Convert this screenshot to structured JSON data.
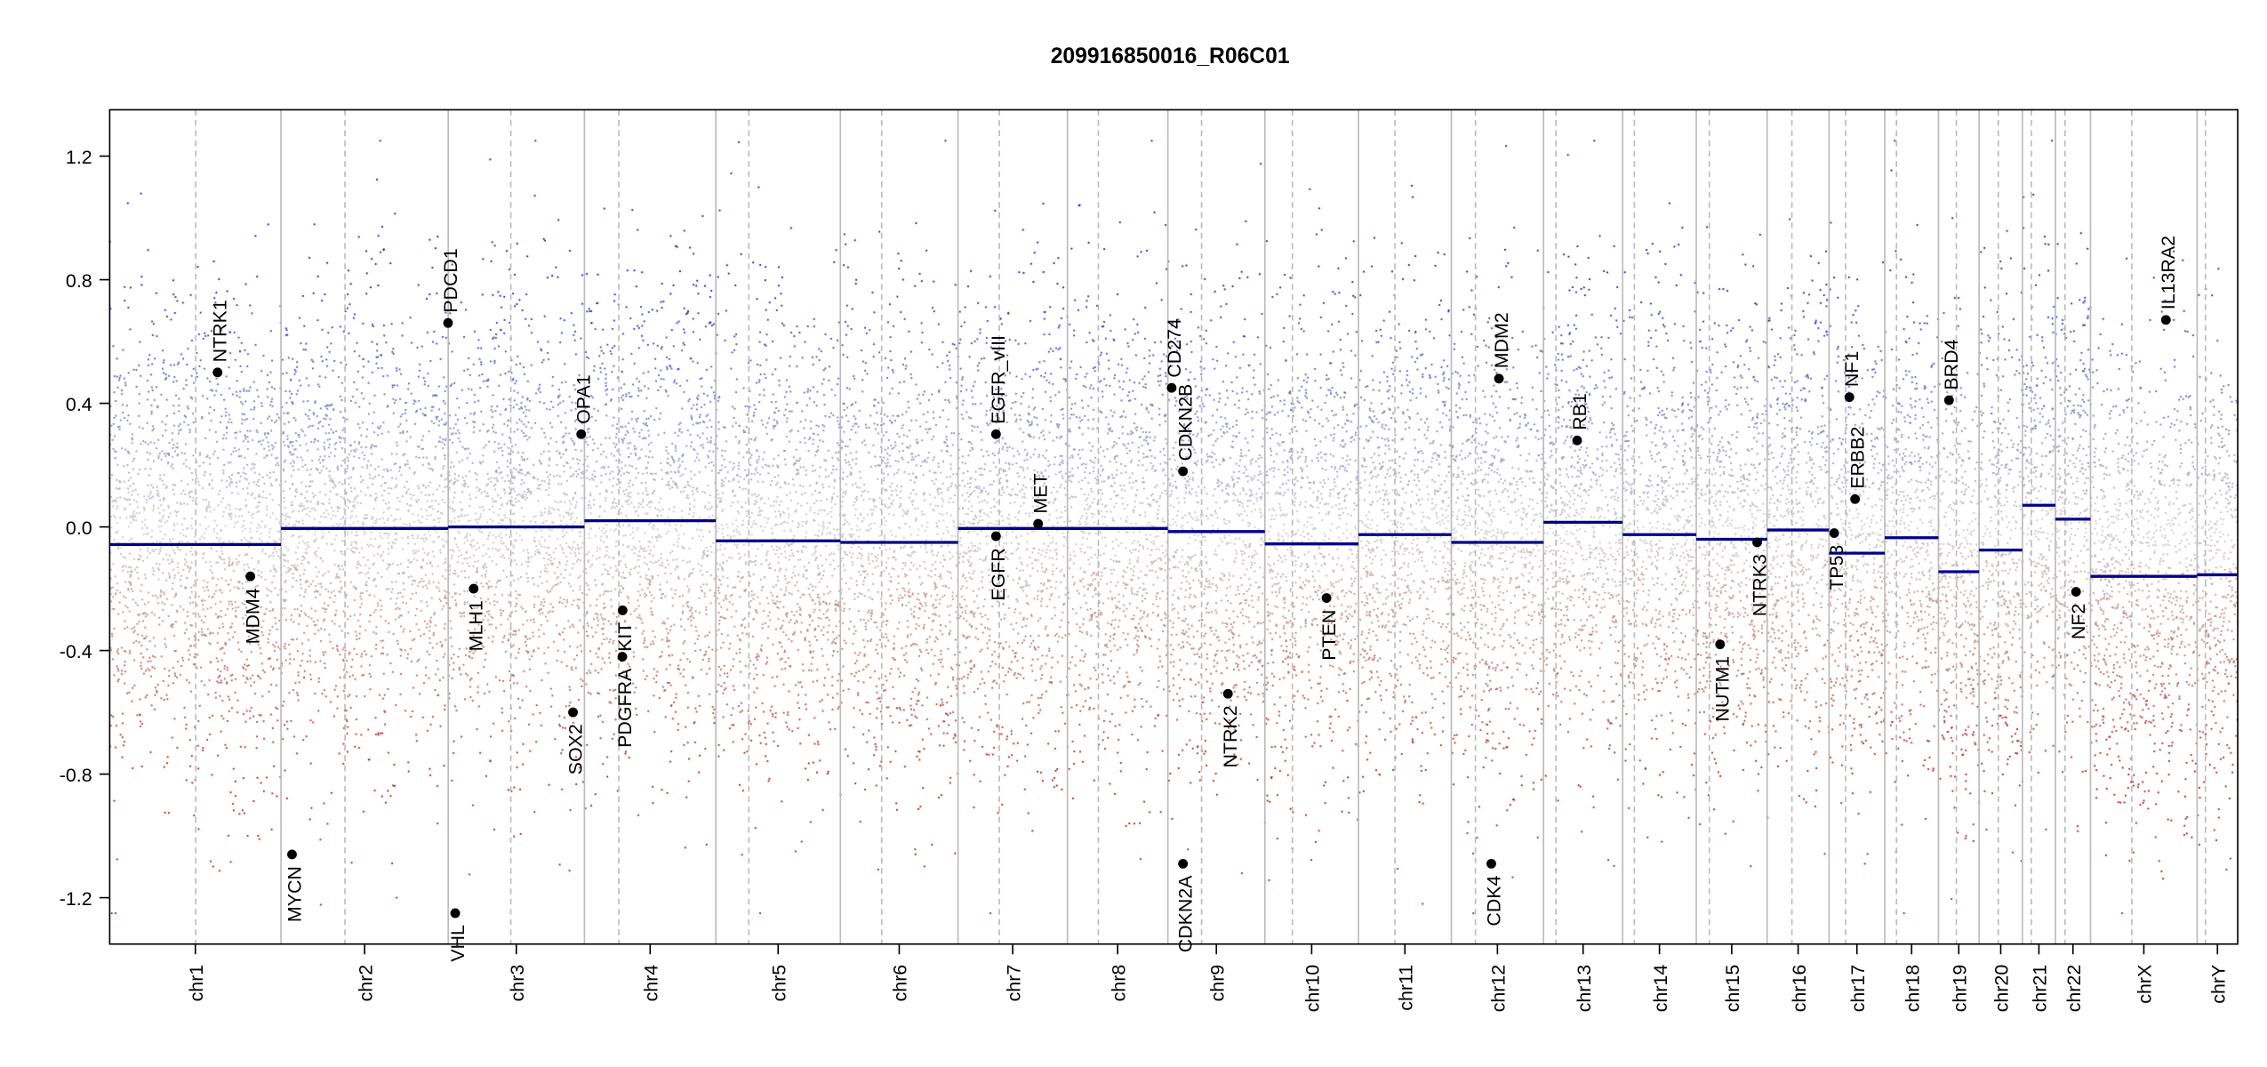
{
  "chart_data": {
    "type": "scatter",
    "title": "209916850016_R06C01",
    "xlabel": "",
    "ylabel": "",
    "ylim": [
      -1.35,
      1.35
    ],
    "yticks": [
      -1.2,
      -0.8,
      -0.4,
      0.0,
      0.4,
      0.8,
      1.2
    ],
    "ytick_labels": [
      "-1.2",
      "-0.8",
      "-0.4",
      "0.0",
      "0.4",
      "0.8",
      "1.2"
    ],
    "grid": false,
    "colors": {
      "gain": "#0000b4",
      "loss": "#aa0000",
      "neutral": "#c8c8c8",
      "segment": "#00008b",
      "gene": "#000000",
      "boundary": "#bbbbbb"
    },
    "chromosomes": [
      {
        "name": "chr1",
        "length_mb": 249,
        "centromere_mb": 125,
        "segment_mean": -0.057
      },
      {
        "name": "chr2",
        "length_mb": 243,
        "centromere_mb": 93,
        "segment_mean": -0.005
      },
      {
        "name": "chr3",
        "length_mb": 198,
        "centromere_mb": 91,
        "segment_mean": 0.0
      },
      {
        "name": "chr4",
        "length_mb": 191,
        "centromere_mb": 50,
        "segment_mean": 0.02
      },
      {
        "name": "chr5",
        "length_mb": 181,
        "centromere_mb": 48,
        "segment_mean": -0.045
      },
      {
        "name": "chr6",
        "length_mb": 171,
        "centromere_mb": 60,
        "segment_mean": -0.05
      },
      {
        "name": "chr7",
        "length_mb": 159,
        "centromere_mb": 60,
        "segment_mean": -0.005
      },
      {
        "name": "chr8",
        "length_mb": 146,
        "centromere_mb": 45,
        "segment_mean": -0.005
      },
      {
        "name": "chr9",
        "length_mb": 141,
        "centromere_mb": 49,
        "segment_mean": -0.015
      },
      {
        "name": "chr10",
        "length_mb": 136,
        "centromere_mb": 40,
        "segment_mean": -0.055
      },
      {
        "name": "chr11",
        "length_mb": 135,
        "centromere_mb": 53,
        "segment_mean": -0.025
      },
      {
        "name": "chr12",
        "length_mb": 134,
        "centromere_mb": 35,
        "segment_mean": -0.05
      },
      {
        "name": "chr13",
        "length_mb": 115,
        "centromere_mb": 18,
        "segment_mean": 0.015
      },
      {
        "name": "chr14",
        "length_mb": 107,
        "centromere_mb": 17,
        "segment_mean": -0.025
      },
      {
        "name": "chr15",
        "length_mb": 103,
        "centromere_mb": 19,
        "segment_mean": -0.04
      },
      {
        "name": "chr16",
        "length_mb": 90,
        "centromere_mb": 36,
        "segment_mean": -0.01
      },
      {
        "name": "chr17",
        "length_mb": 81,
        "centromere_mb": 24,
        "segment_mean": -0.085
      },
      {
        "name": "chr18",
        "length_mb": 78,
        "centromere_mb": 17,
        "segment_mean": -0.035
      },
      {
        "name": "chr19",
        "length_mb": 59,
        "centromere_mb": 26,
        "segment_mean": -0.145
      },
      {
        "name": "chr20",
        "length_mb": 63,
        "centromere_mb": 28,
        "segment_mean": -0.075
      },
      {
        "name": "chr21",
        "length_mb": 48,
        "centromere_mb": 13,
        "segment_mean": 0.07
      },
      {
        "name": "chr22",
        "length_mb": 51,
        "centromere_mb": 14,
        "segment_mean": 0.025
      },
      {
        "name": "chrX",
        "length_mb": 155,
        "centromere_mb": 60,
        "segment_mean": -0.16
      },
      {
        "name": "chrY",
        "length_mb": 59,
        "centromere_mb": 12,
        "segment_mean": -0.155
      }
    ],
    "genes": [
      {
        "name": "NTRK1",
        "chrom": "chr1",
        "pos_mb": 156.8,
        "value": 0.5
      },
      {
        "name": "MDM4",
        "chrom": "chr1",
        "pos_mb": 204.5,
        "value": -0.16
      },
      {
        "name": "MYCN",
        "chrom": "chr2",
        "pos_mb": 16.0,
        "value": -1.06
      },
      {
        "name": "PDCD1",
        "chrom": "chr2",
        "pos_mb": 242.8,
        "value": 0.66
      },
      {
        "name": "VHL",
        "chrom": "chr3",
        "pos_mb": 10.2,
        "value": -1.25
      },
      {
        "name": "MLH1",
        "chrom": "chr3",
        "pos_mb": 37.0,
        "value": -0.2
      },
      {
        "name": "SOX2",
        "chrom": "chr3",
        "pos_mb": 181.4,
        "value": -0.6
      },
      {
        "name": "OPA1",
        "chrom": "chr3",
        "pos_mb": 193.3,
        "value": 0.3
      },
      {
        "name": "PDGFRA",
        "chrom": "chr4",
        "pos_mb": 55.1,
        "value": -0.42
      },
      {
        "name": "KIT",
        "chrom": "chr4",
        "pos_mb": 55.5,
        "value": -0.27
      },
      {
        "name": "EGFR_vIII",
        "chrom": "chr7",
        "pos_mb": 55.2,
        "value": 0.3
      },
      {
        "name": "EGFR",
        "chrom": "chr7",
        "pos_mb": 55.2,
        "value": -0.03
      },
      {
        "name": "MET",
        "chrom": "chr7",
        "pos_mb": 116.4,
        "value": 0.01
      },
      {
        "name": "CD274",
        "chrom": "chr9",
        "pos_mb": 5.5,
        "value": 0.45
      },
      {
        "name": "CDKN2B",
        "chrom": "chr9",
        "pos_mb": 22.0,
        "value": 0.18
      },
      {
        "name": "CDKN2A",
        "chrom": "chr9",
        "pos_mb": 21.97,
        "value": -1.09
      },
      {
        "name": "NTRK2",
        "chrom": "chr9",
        "pos_mb": 87.3,
        "value": -0.54
      },
      {
        "name": "PTEN",
        "chrom": "chr10",
        "pos_mb": 89.6,
        "value": -0.23
      },
      {
        "name": "CDK4",
        "chrom": "chr12",
        "pos_mb": 58.1,
        "value": -1.09
      },
      {
        "name": "MDM2",
        "chrom": "chr12",
        "pos_mb": 69.2,
        "value": 0.48
      },
      {
        "name": "RB1",
        "chrom": "chr13",
        "pos_mb": 48.9,
        "value": 0.28
      },
      {
        "name": "NUTM1",
        "chrom": "chr15",
        "pos_mb": 34.6,
        "value": -0.38
      },
      {
        "name": "NTRK3",
        "chrom": "chr15",
        "pos_mb": 88.5,
        "value": -0.05
      },
      {
        "name": "TP53",
        "chrom": "chr17",
        "pos_mb": 7.5,
        "value": -0.02
      },
      {
        "name": "NF1",
        "chrom": "chr17",
        "pos_mb": 29.5,
        "value": 0.42
      },
      {
        "name": "ERBB2",
        "chrom": "chr17",
        "pos_mb": 37.8,
        "value": 0.09
      },
      {
        "name": "BRD4",
        "chrom": "chr19",
        "pos_mb": 15.3,
        "value": 0.41
      },
      {
        "name": "NF2",
        "chrom": "chr22",
        "pos_mb": 30.0,
        "value": -0.21
      },
      {
        "name": "IL13RA2",
        "chrom": "chrX",
        "pos_mb": 109.6,
        "value": 0.67
      }
    ]
  }
}
